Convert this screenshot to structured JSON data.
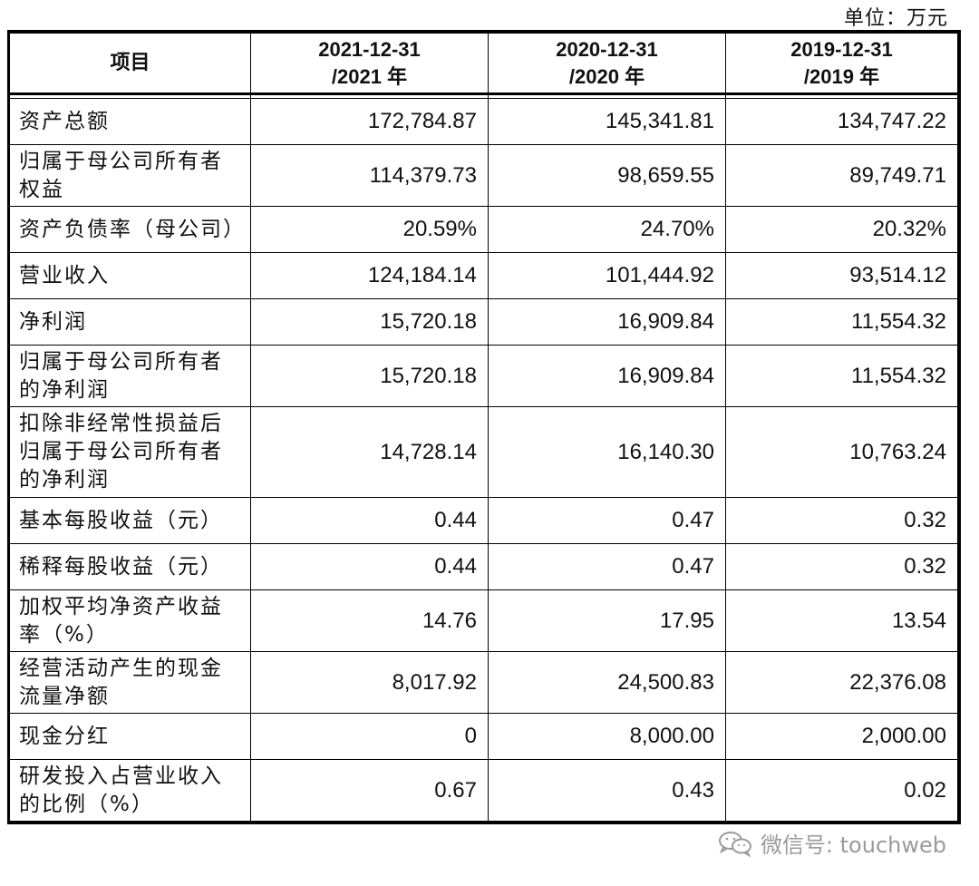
{
  "unit_label": "单位：万元",
  "table": {
    "header": {
      "item": "项目",
      "col1": [
        "2021-12-31",
        "/2021 年"
      ],
      "col2": [
        "2020-12-31",
        "/2020 年"
      ],
      "col3": [
        "2019-12-31",
        "/2019 年"
      ]
    },
    "rows": [
      {
        "label": "资产总额",
        "v2021": "172,784.87",
        "v2020": "145,341.81",
        "v2019": "134,747.22"
      },
      {
        "label": "归属于母公司所有者权益",
        "v2021": "114,379.73",
        "v2020": "98,659.55",
        "v2019": "89,749.71"
      },
      {
        "label": "资产负债率（母公司）",
        "v2021": "20.59%",
        "v2020": "24.70%",
        "v2019": "20.32%"
      },
      {
        "label": "营业收入",
        "v2021": "124,184.14",
        "v2020": "101,444.92",
        "v2019": "93,514.12"
      },
      {
        "label": "净利润",
        "v2021": "15,720.18",
        "v2020": "16,909.84",
        "v2019": "11,554.32"
      },
      {
        "label": "归属于母公司所有者的净利润",
        "v2021": "15,720.18",
        "v2020": "16,909.84",
        "v2019": "11,554.32"
      },
      {
        "label": "扣除非经常性损益后归属于母公司所有者的净利润",
        "v2021": "14,728.14",
        "v2020": "16,140.30",
        "v2019": "10,763.24"
      },
      {
        "label": "基本每股收益（元）",
        "v2021": "0.44",
        "v2020": "0.47",
        "v2019": "0.32"
      },
      {
        "label": "稀释每股收益（元）",
        "v2021": "0.44",
        "v2020": "0.47",
        "v2019": "0.32"
      },
      {
        "label": "加权平均净资产收益率（%）",
        "v2021": "14.76",
        "v2020": "17.95",
        "v2019": "13.54"
      },
      {
        "label": "经营活动产生的现金流量净额",
        "v2021": "8,017.92",
        "v2020": "24,500.83",
        "v2019": "22,376.08"
      },
      {
        "label": "现金分红",
        "v2021": "0",
        "v2020": "8,000.00",
        "v2019": "2,000.00"
      },
      {
        "label": "研发投入占营业收入的比例（%）",
        "v2021": "0.67",
        "v2020": "0.43",
        "v2019": "0.02"
      }
    ]
  },
  "watermark": {
    "icon": "wechat-icon",
    "text": "微信号: touchweb"
  }
}
